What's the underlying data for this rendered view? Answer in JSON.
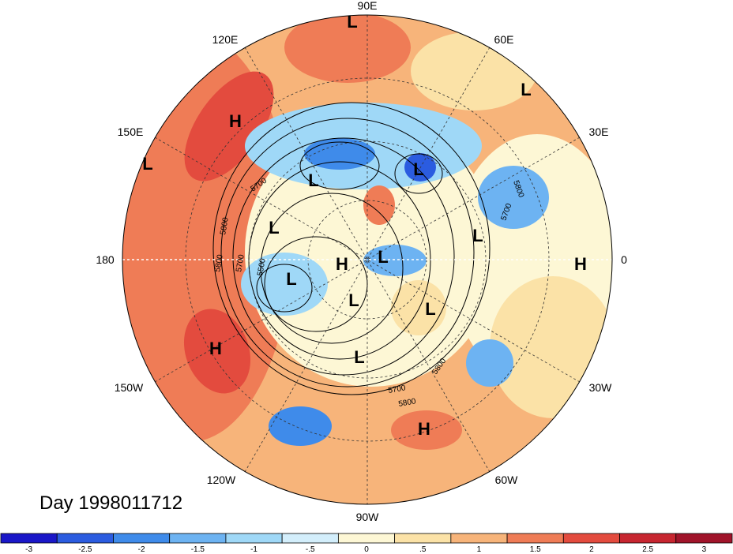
{
  "title": "Day 1998011712",
  "longitude_labels": [
    "90E",
    "60E",
    "30E",
    "0",
    "30W",
    "60W",
    "90W",
    "120W",
    "150W",
    "180",
    "150E",
    "120E"
  ],
  "pressure_centers": [
    {
      "type": "L",
      "region": "north-siberia-top"
    },
    {
      "type": "L",
      "region": "west-russia"
    },
    {
      "type": "H",
      "region": "japan-east-china"
    },
    {
      "type": "L",
      "region": "west-pacific"
    },
    {
      "type": "L",
      "region": "northeast-siberia"
    },
    {
      "type": "L",
      "region": "central-siberia"
    },
    {
      "type": "L",
      "region": "bering-sea"
    },
    {
      "type": "L",
      "region": "scandinavia"
    },
    {
      "type": "H",
      "region": "alaska"
    },
    {
      "type": "L",
      "region": "arctic-ocean"
    },
    {
      "type": "H",
      "region": "central-europe"
    },
    {
      "type": "L",
      "region": "gulf-of-alaska"
    },
    {
      "type": "L",
      "region": "canadian-archipelago"
    },
    {
      "type": "L",
      "region": "greenland"
    },
    {
      "type": "H",
      "region": "northeast-pacific"
    },
    {
      "type": "L",
      "region": "great-lakes"
    },
    {
      "type": "H",
      "region": "caribbean"
    }
  ],
  "contour_labels": [
    "5700",
    "5800",
    "5800",
    "5700",
    "5500",
    "5800",
    "5700",
    "5800",
    "5700",
    "5800"
  ],
  "colorbar": {
    "colors": [
      "#1a17c8",
      "#2b5ce0",
      "#3f8bea",
      "#6db3f2",
      "#9fd8f7",
      "#d3eefb",
      "#fdf7d5",
      "#fbe2a7",
      "#f7b47a",
      "#ef7c56",
      "#e34b3e",
      "#c72630",
      "#a0142a"
    ],
    "ticks": [
      "-3",
      "-2.5",
      "-2",
      "-1.5",
      "-1",
      "-.5",
      "0",
      ".5",
      "1",
      "1.5",
      "2",
      "2.5",
      "3"
    ]
  },
  "colors": {
    "ocean_base": "#f7b47a",
    "land_base": "#fdf7d5",
    "negative_anomaly": "#6db3f2",
    "positive_anomaly": "#e34b3e"
  }
}
